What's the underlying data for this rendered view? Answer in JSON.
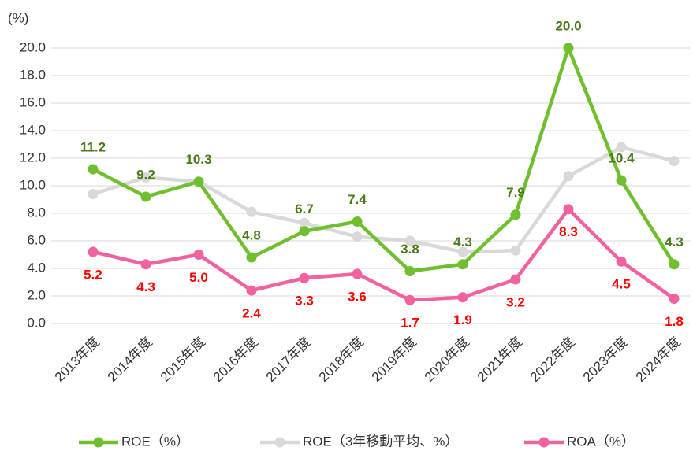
{
  "chart_data": {
    "type": "line",
    "y_label": "(%)",
    "categories": [
      "2013年度",
      "2014年度",
      "2015年度",
      "2016年度",
      "2017年度",
      "2018年度",
      "2019年度",
      "2020年度",
      "2021年度",
      "2022年度",
      "2023年度",
      "2024年度"
    ],
    "series": [
      {
        "name": "ROE（%）",
        "color": "#70bf2f",
        "label_color": "#4a7a17",
        "label_pos": "above",
        "values": [
          11.2,
          9.2,
          10.3,
          4.8,
          6.7,
          7.4,
          3.8,
          4.3,
          7.9,
          20.0,
          10.4,
          4.3
        ],
        "value_labels": [
          "11.2",
          "9.2",
          "10.3",
          "4.8",
          "6.7",
          "7.4",
          "3.8",
          "4.3",
          "7.9",
          "20.0",
          "10.4",
          "4.3"
        ]
      },
      {
        "name": "ROE（3年移動平均、%）",
        "color": "#d9d9d9",
        "values": [
          9.4,
          10.6,
          10.3,
          8.1,
          7.3,
          6.3,
          6.0,
          5.2,
          5.3,
          10.7,
          12.8,
          11.8
        ]
      },
      {
        "name": "ROA（%）",
        "color": "#f062a0",
        "label_color": "#ff0000",
        "label_pos": "below",
        "values": [
          5.2,
          4.3,
          5.0,
          2.4,
          3.3,
          3.6,
          1.7,
          1.9,
          3.2,
          8.3,
          4.5,
          1.8
        ],
        "value_labels": [
          "5.2",
          "4.3",
          "5.0",
          "2.4",
          "3.3",
          "3.6",
          "1.7",
          "1.9",
          "3.2",
          "8.3",
          "4.5",
          "1.8"
        ]
      }
    ],
    "ylim": [
      0,
      20
    ],
    "yticks": [
      {
        "value": 0,
        "label": "0.0"
      },
      {
        "value": 2,
        "label": "2.0"
      },
      {
        "value": 4,
        "label": "4.0"
      },
      {
        "value": 6,
        "label": "6.0"
      },
      {
        "value": 8,
        "label": "8.0"
      },
      {
        "value": 10,
        "label": "10.0"
      },
      {
        "value": 12,
        "label": "12.0"
      },
      {
        "value": 14,
        "label": "14.0"
      },
      {
        "value": 16,
        "label": "16.0"
      },
      {
        "value": 18,
        "label": "18.0"
      },
      {
        "value": 20,
        "label": "20.0"
      }
    ],
    "grid": true,
    "legend": "bottom"
  }
}
